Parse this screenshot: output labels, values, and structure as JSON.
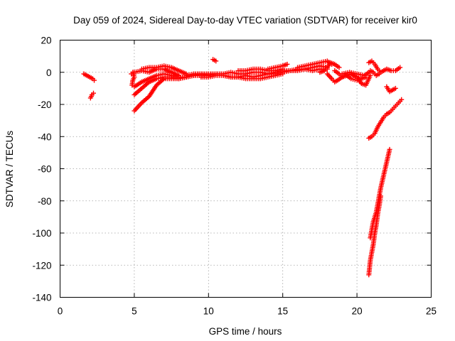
{
  "chart_data": {
    "type": "scatter",
    "title": "Day 059 of 2024, Sidereal Day-to-day VTEC variation (SDTVAR) for receiver kir0",
    "xlabel": "GPS time / hours",
    "ylabel": "SDTVAR / TECUs",
    "xlim": [
      0,
      25
    ],
    "ylim": [
      -140,
      20
    ],
    "xticks": [
      "0",
      "5",
      "10",
      "15",
      "20",
      "25"
    ],
    "yticks": [
      "20",
      "0",
      "-20",
      "-40",
      "-60",
      "-80",
      "-100",
      "-120",
      "-140"
    ],
    "grid": true,
    "marker": "plus",
    "color": "#ff0000",
    "series": [
      {
        "segments": [
          {
            "x": [
              1.6,
              1.8,
              2.0,
              2.2,
              2.3
            ],
            "y": [
              -1,
              -2,
              -3,
              -4,
              -5
            ]
          },
          {
            "x": [
              2.05,
              2.15,
              2.25
            ],
            "y": [
              -16,
              -14,
              -13
            ]
          },
          {
            "x": [
              4.8,
              4.9,
              5.0,
              4.9,
              4.85
            ],
            "y": [
              -1,
              0,
              -3,
              -5,
              -8
            ]
          },
          {
            "x": [
              5.0,
              5.5,
              6.0,
              6.5,
              7.0,
              7.5,
              8.0,
              8.5,
              9.0,
              9.5,
              10.0,
              10.5
            ],
            "y": [
              -24,
              -19,
              -15,
              -8,
              -4,
              -4,
              -4,
              -3,
              -2,
              -1,
              -1,
              -1
            ]
          },
          {
            "x": [
              5.0,
              5.5,
              6.0,
              6.5,
              7.0,
              7.5,
              8.0,
              8.5,
              9.0,
              9.5,
              10.0
            ],
            "y": [
              -14,
              -10,
              -6,
              -4,
              -3,
              -3,
              -4,
              -3,
              -2,
              -2,
              -2
            ]
          },
          {
            "x": [
              5.0,
              5.5,
              6.0,
              6.5,
              7.0,
              7.5,
              8.0,
              8.5,
              9.0
            ],
            "y": [
              -9,
              -6,
              -4,
              -2,
              -1,
              -2,
              -3,
              -3,
              -2
            ]
          },
          {
            "x": [
              5.5,
              6.0,
              6.5,
              7.0,
              7.5,
              8.0,
              8.5
            ],
            "y": [
              2,
              3,
              3,
              4,
              3,
              1,
              -1
            ]
          },
          {
            "x": [
              5.0,
              5.5,
              6.0,
              6.5,
              7.0,
              7.5,
              8.0
            ],
            "y": [
              0,
              1,
              0,
              2,
              2,
              0,
              -2
            ]
          },
          {
            "x": [
              8.5,
              9.0,
              9.5,
              10.0,
              10.5,
              11.0,
              11.5,
              12.0,
              12.5,
              13.0,
              13.5,
              14.0,
              14.5,
              15.0,
              15.5,
              16.0,
              16.5,
              17.0,
              17.5,
              18.0
            ],
            "y": [
              -2,
              -1,
              -1,
              -2,
              -1,
              -1,
              0,
              -1,
              -1,
              0,
              0,
              -1,
              0,
              1,
              1,
              2,
              2,
              3,
              4,
              3
            ]
          },
          {
            "x": [
              9.5,
              10.0,
              10.5,
              11.0,
              11.5,
              12.0,
              12.5,
              13.0,
              13.5,
              14.0,
              14.5,
              15.0,
              15.5,
              16.0,
              16.5,
              17.0,
              17.5,
              18.0
            ],
            "y": [
              -3,
              -3,
              -2,
              -2,
              -3,
              -3,
              -2,
              -3,
              -2,
              -1,
              -1,
              0,
              1,
              1,
              2,
              1,
              2,
              2
            ]
          },
          {
            "x": [
              11.0,
              11.5,
              12.0,
              12.5,
              13.0,
              13.5,
              14.0,
              14.5,
              15.0
            ],
            "y": [
              -2,
              -3,
              -3,
              -4,
              -4,
              -4,
              -3,
              -2,
              -1
            ]
          },
          {
            "x": [
              12.0,
              12.5,
              13.0,
              13.5,
              14.0,
              14.5,
              15.0
            ],
            "y": [
              1,
              1,
              2,
              2,
              1,
              1,
              2
            ]
          },
          {
            "x": [
              14.0,
              14.5,
              15.0,
              15.3
            ],
            "y": [
              2,
              3,
              4,
              5
            ]
          },
          {
            "x": [
              10.3,
              10.5
            ],
            "y": [
              8,
              7
            ]
          },
          {
            "x": [
              16.0,
              16.5,
              17.0,
              17.5,
              18.0,
              18.3
            ],
            "y": [
              3,
              4,
              5,
              6,
              7,
              5
            ]
          },
          {
            "x": [
              17.5,
              17.8,
              18.0,
              18.2,
              18.5,
              18.8
            ],
            "y": [
              0,
              1,
              3,
              6,
              5,
              3
            ]
          },
          {
            "x": [
              18.0,
              18.3,
              18.5,
              18.7,
              19.0,
              19.3,
              19.6,
              20.0,
              20.3,
              20.6
            ],
            "y": [
              -1,
              -4,
              -6,
              -5,
              -3,
              -2,
              -4,
              -5,
              -4,
              -3
            ]
          },
          {
            "x": [
              18.5,
              18.8,
              19.0,
              19.3,
              19.6,
              20.0,
              20.3,
              20.6,
              20.9
            ],
            "y": [
              1,
              -1,
              -3,
              -2,
              -1,
              -3,
              -7,
              -8,
              -2
            ]
          },
          {
            "x": [
              19.0,
              19.5,
              20.0,
              20.5,
              20.8
            ],
            "y": [
              -1,
              0,
              -1,
              -2,
              0
            ]
          },
          {
            "x": [
              20.8,
              21.0,
              21.2,
              21.4,
              21.6,
              21.8,
              22.0,
              22.3,
              22.6,
              22.9
            ],
            "y": [
              6,
              7,
              5,
              2,
              0,
              1,
              2,
              1,
              1,
              3
            ]
          },
          {
            "x": [
              20.9,
              21.1,
              21.3,
              21.5
            ],
            "y": [
              1,
              0,
              -2,
              -1
            ]
          },
          {
            "x": [
              22.0,
              22.2,
              22.4,
              22.6
            ],
            "y": [
              -9,
              -12,
              -11,
              -10
            ]
          },
          {
            "x": [
              20.8,
              21.0,
              21.2,
              21.4,
              21.6,
              21.8,
              22.0,
              22.2,
              22.4,
              22.6,
              22.8,
              23.0
            ],
            "y": [
              -41,
              -40,
              -38,
              -34,
              -31,
              -28,
              -26,
              -25,
              -23,
              -21,
              -19,
              -17
            ]
          },
          {
            "x": [
              20.8,
              20.9,
              21.0,
              21.1,
              21.2,
              21.3,
              21.4,
              21.5,
              21.6
            ],
            "y": [
              -126,
              -117,
              -112,
              -107,
              -100,
              -95,
              -88,
              -83,
              -77
            ]
          },
          {
            "x": [
              20.9,
              21.0,
              21.1,
              21.2,
              21.3,
              21.4,
              21.5,
              21.6,
              21.7,
              21.8,
              21.9,
              22.0,
              22.1,
              22.2
            ],
            "y": [
              -103,
              -98,
              -93,
              -90,
              -87,
              -82,
              -77,
              -72,
              -68,
              -64,
              -60,
              -56,
              -52,
              -48
            ]
          }
        ]
      }
    ]
  }
}
